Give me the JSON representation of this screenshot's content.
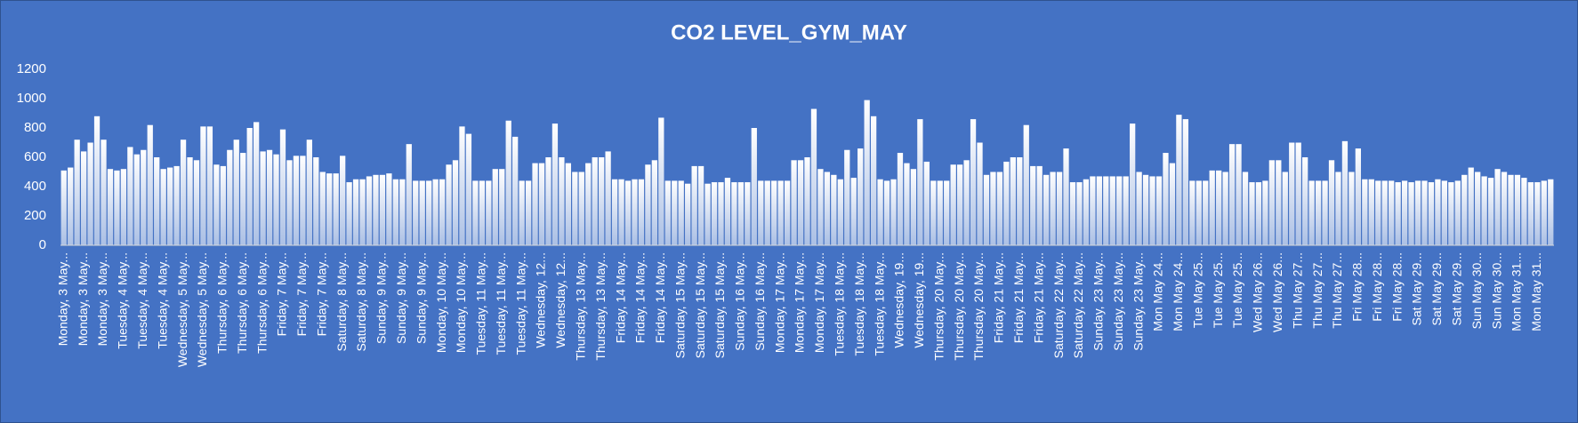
{
  "chart_data": {
    "type": "bar",
    "title": "CO2 LEVEL_GYM_MAY",
    "color": "#ffffff",
    "background": "#4472c4",
    "grid": false,
    "ylim": [
      0,
      1200
    ],
    "yticks": [
      0,
      200,
      400,
      600,
      800,
      1000,
      1200
    ],
    "categories": [
      "Monday, 3 May...",
      null,
      null,
      "Monday, 3 May...",
      null,
      null,
      "Monday, 3 May...",
      null,
      null,
      "Tuesday, 4 May...",
      null,
      null,
      "Tuesday, 4 May...",
      null,
      null,
      "Tuesday, 4 May...",
      null,
      null,
      "Wednesday, 5 May...",
      null,
      null,
      "Wednesday, 5 May...",
      null,
      null,
      "Thursday, 6 May...",
      null,
      null,
      "Thursday, 6 May...",
      null,
      null,
      "Thursday, 6 May...",
      null,
      null,
      "Friday, 7 May...",
      null,
      null,
      "Friday, 7 May...",
      null,
      null,
      "Friday, 7 May...",
      null,
      null,
      "Saturday, 8 May...",
      null,
      null,
      "Saturday, 8 May...",
      null,
      null,
      "Sunday, 9 May...",
      null,
      null,
      "Sunday, 9 May...",
      null,
      null,
      "Sunday, 9 May...",
      null,
      null,
      "Monday, 10 May...",
      null,
      null,
      "Monday, 10 May...",
      null,
      null,
      "Tuesday, 11 May...",
      null,
      null,
      "Tuesday, 11 May...",
      null,
      null,
      "Tuesday, 11 May...",
      null,
      null,
      "Wednesday, 12...",
      null,
      null,
      "Wednesday, 12...",
      null,
      null,
      "Thursday, 13 May...",
      null,
      null,
      "Thursday, 13 May...",
      null,
      null,
      "Friday, 14 May...",
      null,
      null,
      "Friday, 14 May...",
      null,
      null,
      "Friday, 14 May...",
      null,
      null,
      "Saturday, 15 May...",
      null,
      null,
      "Saturday, 15 May...",
      null,
      null,
      "Saturday, 15 May...",
      null,
      null,
      "Sunday, 16 May...",
      null,
      null,
      "Sunday, 16 May...",
      null,
      null,
      "Monday, 17 May...",
      null,
      null,
      "Monday, 17 May...",
      null,
      null,
      "Monday, 17 May...",
      null,
      null,
      "Tuesday, 18 May...",
      null,
      null,
      "Tuesday, 18 May...",
      null,
      null,
      "Tuesday, 18 May...",
      null,
      null,
      "Wednesday, 19...",
      null,
      null,
      "Wednesday, 19...",
      null,
      null,
      "Thursday, 20 May...",
      null,
      null,
      "Thursday, 20 May...",
      null,
      null,
      "Thursday, 20 May...",
      null,
      null,
      "Friday, 21 May...",
      null,
      null,
      "Friday, 21 May...",
      null,
      null,
      "Friday, 21 May...",
      null,
      null,
      "Saturday, 22 May...",
      null,
      null,
      "Saturday, 22 May...",
      null,
      null,
      "Sunday, 23 May...",
      null,
      null,
      "Sunday, 23 May...",
      null,
      null,
      "Sunday, 23 May...",
      null,
      null,
      "Mon May 24...",
      null,
      null,
      "Mon May 24...",
      null,
      null,
      "Tue May 25...",
      null,
      null,
      "Tue May 25...",
      null,
      null,
      "Tue May 25...",
      null,
      null,
      "Wed May 26...",
      null,
      null,
      "Wed May 26...",
      null,
      null,
      "Thu May 27...",
      null,
      null,
      "Thu May 27...",
      null,
      null,
      "Thu May 27...",
      null,
      null,
      "Fri May 28...",
      null,
      null,
      "Fri May 28...",
      null,
      null,
      "Fri May 28...",
      null,
      null,
      "Sat May 29...",
      null,
      null,
      "Sat May 29...",
      null,
      null,
      "Sat May 29...",
      null,
      null,
      "Sun May 30...",
      null,
      null,
      "Sun May 30...",
      null,
      null,
      "Mon May 31...",
      null,
      null,
      "Mon May 31...",
      null,
      null
    ],
    "values": [
      510,
      530,
      720,
      640,
      700,
      880,
      720,
      520,
      510,
      520,
      670,
      620,
      650,
      820,
      600,
      520,
      530,
      540,
      720,
      600,
      580,
      810,
      810,
      550,
      540,
      650,
      720,
      630,
      800,
      840,
      640,
      650,
      620,
      790,
      580,
      610,
      610,
      720,
      600,
      500,
      490,
      490,
      610,
      430,
      450,
      450,
      470,
      480,
      480,
      490,
      450,
      450,
      690,
      440,
      440,
      440,
      450,
      450,
      550,
      580,
      810,
      760,
      440,
      440,
      440,
      520,
      520,
      850,
      740,
      440,
      440,
      560,
      560,
      600,
      830,
      600,
      560,
      500,
      500,
      560,
      600,
      600,
      640,
      450,
      450,
      440,
      450,
      450,
      550,
      580,
      870,
      440,
      440,
      440,
      420,
      540,
      540,
      420,
      430,
      430,
      460,
      430,
      430,
      430,
      800,
      440,
      440,
      440,
      440,
      440,
      580,
      580,
      600,
      930,
      520,
      500,
      480,
      450,
      650,
      460,
      660,
      990,
      880,
      450,
      440,
      450,
      630,
      560,
      520,
      860,
      570,
      440,
      440,
      440,
      550,
      550,
      580,
      860,
      700,
      480,
      500,
      500,
      570,
      600,
      600,
      820,
      540,
      540,
      480,
      500,
      500,
      660,
      430,
      430,
      450,
      470,
      470,
      470,
      470,
      470,
      470,
      830,
      500,
      480,
      470,
      470,
      630,
      560,
      890,
      860,
      440,
      440,
      440,
      510,
      510,
      500,
      690,
      690,
      500,
      430,
      430,
      440,
      580,
      580,
      500,
      700,
      700,
      600,
      440,
      440,
      440,
      580,
      500,
      710,
      500,
      660,
      450,
      450,
      440,
      440,
      440,
      430,
      440,
      430,
      440,
      440,
      430,
      450,
      440,
      430,
      440,
      480,
      530,
      500,
      470,
      460,
      520,
      500,
      480,
      480,
      460,
      430,
      430,
      440,
      450
    ]
  }
}
